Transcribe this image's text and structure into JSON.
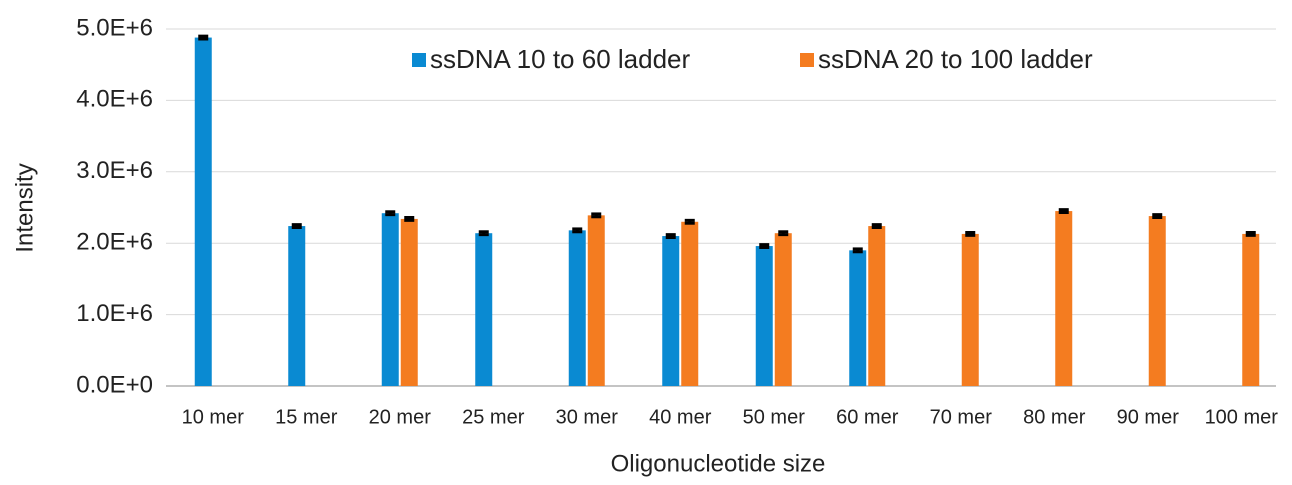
{
  "chart_data": {
    "type": "bar",
    "x_label": "Oligonucleotide size",
    "y_label": "Intensity",
    "categories": [
      "10 mer",
      "15 mer",
      "20 mer",
      "25 mer",
      "30 mer",
      "40 mer",
      "50 mer",
      "60 mer",
      "70 mer",
      "80 mer",
      "90 mer",
      "100 mer"
    ],
    "series": [
      {
        "name": "ssDNA 10 to 60 ladder",
        "color": "#0a8ad2",
        "values": [
          4880000,
          2240000,
          2420000,
          2140000,
          2180000,
          2100000,
          1960000,
          1900000,
          null,
          null,
          null,
          null
        ],
        "errors": [
          20000,
          20000,
          20000,
          20000,
          20000,
          20000,
          20000,
          20000,
          null,
          null,
          null,
          null
        ]
      },
      {
        "name": "ssDNA 20 to 100 ladder",
        "color": "#f47c20",
        "values": [
          null,
          null,
          2340000,
          null,
          2390000,
          2300000,
          2140000,
          2240000,
          2130000,
          2450000,
          2380000,
          2130000
        ],
        "errors": [
          null,
          null,
          20000,
          null,
          20000,
          20000,
          20000,
          20000,
          20000,
          20000,
          20000,
          20000
        ]
      }
    ],
    "ylim": [
      0,
      5000000
    ],
    "yticks": [
      {
        "value": 0,
        "label": "0.0E+0"
      },
      {
        "value": 1000000,
        "label": "1.0E+6"
      },
      {
        "value": 2000000,
        "label": "2.0E+6"
      },
      {
        "value": 3000000,
        "label": "3.0E+6"
      },
      {
        "value": 4000000,
        "label": "4.0E+6"
      },
      {
        "value": 5000000,
        "label": "5.0E+6"
      }
    ],
    "grid": true,
    "legend": "top"
  }
}
